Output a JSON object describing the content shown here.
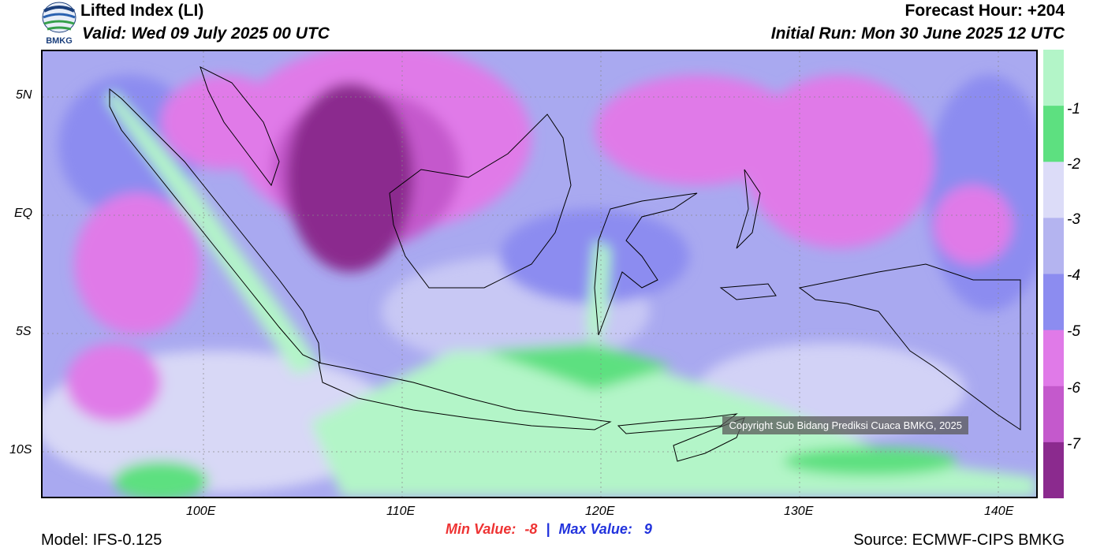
{
  "header": {
    "title": "Lifted Index (LI)",
    "valid": "Valid: Wed 09 July 2025 00 UTC",
    "forecast_hour": "Forecast Hour: +204",
    "initial_run": "Initial Run: Mon 30 June 2025 12 UTC"
  },
  "logo": {
    "text": "BMKG"
  },
  "map": {
    "lat_labels": [
      "5N",
      "EQ",
      "5S",
      "10S"
    ],
    "lon_labels": [
      "100E",
      "110E",
      "120E",
      "130E",
      "140E"
    ],
    "copyright": "Copyright Sub Bidang Prediksi Cuaca BMKG, 2025"
  },
  "legend": {
    "labels": [
      "-1",
      "-2",
      "-3",
      "-4",
      "-5",
      "-6",
      "-7"
    ],
    "colors": [
      "#b3f5c8",
      "#5de080",
      "#dcdcf8",
      "#b4b4f0",
      "#8c8cf0",
      "#e07ae8",
      "#c459cc",
      "#8b2a8e"
    ]
  },
  "footer": {
    "min_label": "Min Value:",
    "min_value": "-8",
    "separator": "|",
    "max_label": "Max Value:",
    "max_value": "9",
    "model": "Model: IFS-0.125",
    "source": "Source: ECMWF-CIPS BMKG"
  }
}
